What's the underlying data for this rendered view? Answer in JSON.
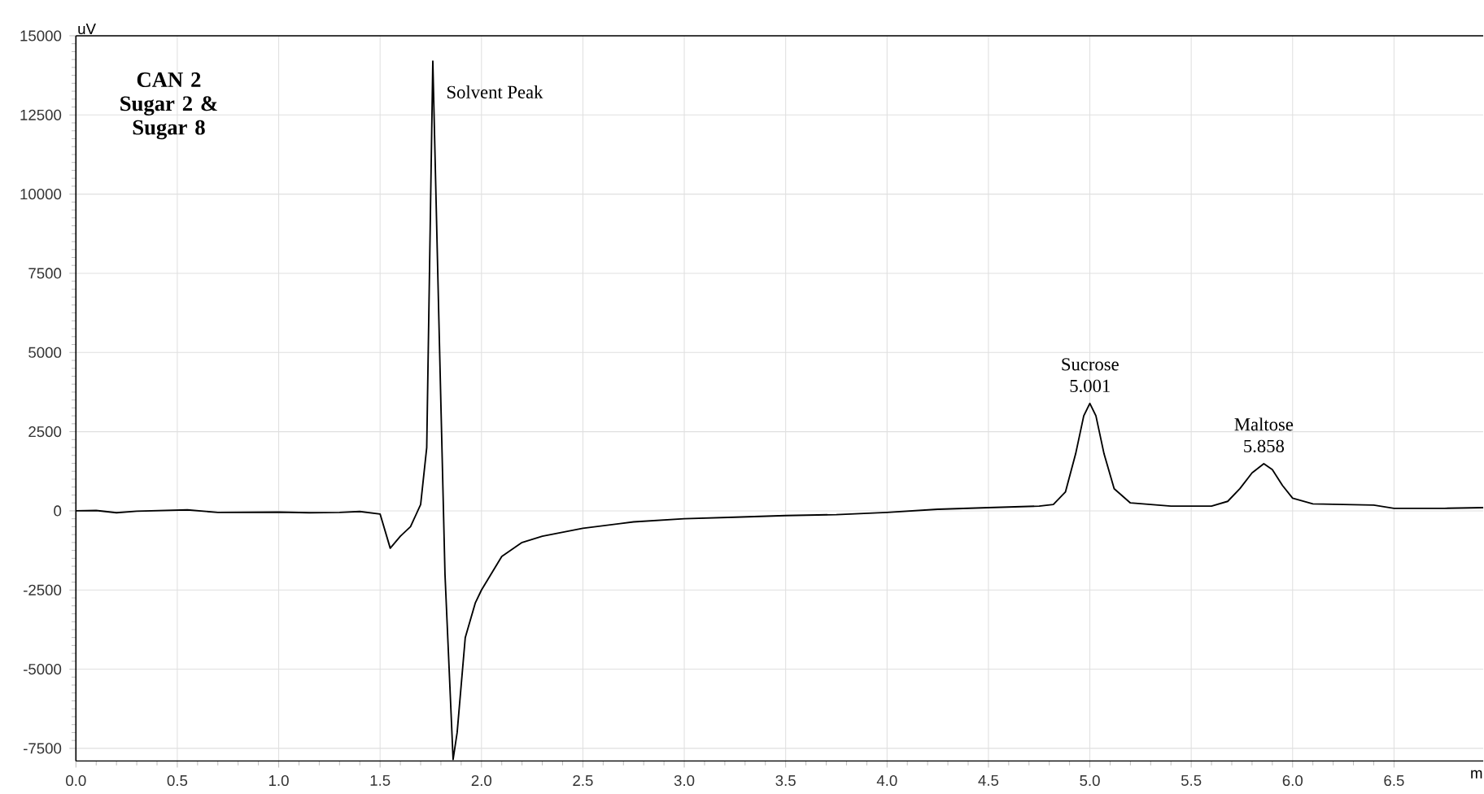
{
  "chart_data": {
    "type": "line",
    "title": "CAN 2 Sugar 2 & Sugar 8",
    "xlabel": "m",
    "ylabel": "uV",
    "x": [
      0,
      0.1,
      0.2,
      0.3,
      0.55,
      0.7,
      1.0,
      1.15,
      1.3,
      1.4,
      1.5,
      1.55,
      1.6,
      1.65,
      1.7,
      1.73,
      1.76,
      1.79,
      1.82,
      1.86,
      1.88,
      1.92,
      1.97,
      2.0,
      2.1,
      2.2,
      2.3,
      2.5,
      2.75,
      3.0,
      3.25,
      3.5,
      3.75,
      4.0,
      4.25,
      4.5,
      4.75,
      4.82,
      4.88,
      4.93,
      4.97,
      5.0,
      5.03,
      5.07,
      5.12,
      5.2,
      5.4,
      5.6,
      5.68,
      5.74,
      5.8,
      5.858,
      5.9,
      5.95,
      6.0,
      6.1,
      6.4,
      6.5,
      6.75,
      6.94
    ],
    "series": [
      {
        "color": "#000000",
        "values": [
          0,
          10,
          -60,
          -10,
          30,
          -50,
          -40,
          -60,
          -50,
          -20,
          -100,
          -1180,
          -800,
          -500,
          200,
          2000,
          14200,
          6000,
          -2000,
          -7850,
          -7000,
          -4000,
          -2900,
          -2500,
          -1440,
          -1000,
          -800,
          -550,
          -350,
          -250,
          -200,
          -150,
          -120,
          -50,
          50,
          100,
          150,
          200,
          600,
          1800,
          3000,
          3390,
          3000,
          1800,
          700,
          250,
          150,
          150,
          300,
          700,
          1200,
          1490,
          1300,
          800,
          400,
          220,
          180,
          80,
          80,
          100
        ]
      }
    ],
    "xlim": [
      0,
      6.94
    ],
    "ylim": [
      -7900,
      15000
    ],
    "xticks": [
      {
        "value": 0,
        "label": "0.0"
      },
      {
        "value": 0.5,
        "label": "0.5"
      },
      {
        "value": 1,
        "label": "1.0"
      },
      {
        "value": 1.5,
        "label": "1.5"
      },
      {
        "value": 2,
        "label": "2.0"
      },
      {
        "value": 2.5,
        "label": "2.5"
      },
      {
        "value": 3,
        "label": "3.0"
      },
      {
        "value": 3.5,
        "label": "3.5"
      },
      {
        "value": 4,
        "label": "4.0"
      },
      {
        "value": 4.5,
        "label": "4.5"
      },
      {
        "value": 5,
        "label": "5.0"
      },
      {
        "value": 5.5,
        "label": "5.5"
      },
      {
        "value": 6,
        "label": "6.0"
      },
      {
        "value": 6.5,
        "label": "6.5"
      }
    ],
    "yticks": [
      -7500,
      -5000,
      -2500,
      0,
      2500,
      5000,
      7500,
      10000,
      12500,
      15000
    ],
    "grid": true,
    "marker": "none",
    "line_style": "solid",
    "annotations": [
      {
        "text": "Solvent Peak",
        "x": 1.76,
        "y": 14200
      },
      {
        "text": "Sucrose",
        "x": 5.001,
        "y": 3390
      },
      {
        "text": "5.001",
        "x": 5.001,
        "y": 3390
      },
      {
        "text": "Maltose",
        "x": 5.858,
        "y": 1490
      },
      {
        "text": "5.858",
        "x": 5.858,
        "y": 1490
      }
    ]
  }
}
